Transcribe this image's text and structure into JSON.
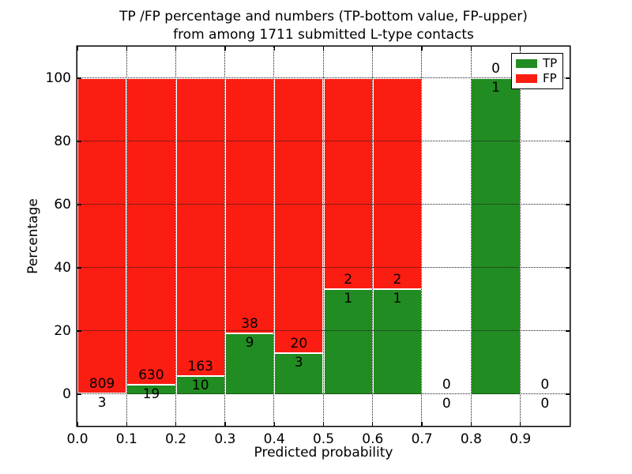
{
  "title": {
    "line1": "TP /FP percentage and numbers (TP-bottom value, FP-upper)",
    "line2": "from among 1711 submitted L-type contacts"
  },
  "chart_data": {
    "type": "bar",
    "stacked": true,
    "title": "TP /FP percentage and numbers (TP-bottom value, FP-upper)\nfrom among 1711 submitted L-type contacts",
    "xlabel": "Predicted probability",
    "ylabel": "Percentage",
    "xlim": [
      0.0,
      1.0
    ],
    "ylim": [
      -10,
      110
    ],
    "xticks": [
      0.0,
      0.1,
      0.2,
      0.3,
      0.4,
      0.5,
      0.6,
      0.7,
      0.8,
      0.9
    ],
    "xtick_labels": [
      "0.0",
      "0.1",
      "0.2",
      "0.3",
      "0.4",
      "0.5",
      "0.6",
      "0.7",
      "0.8",
      "0.9"
    ],
    "yticks": [
      0,
      20,
      40,
      60,
      80,
      100
    ],
    "ytick_labels": [
      "0",
      "20",
      "40",
      "60",
      "80",
      "100"
    ],
    "grid": "dotted",
    "annotation_offset_pct": 3,
    "bins": [
      {
        "x0": 0.0,
        "x1": 0.1,
        "tp": 3,
        "fp": 809
      },
      {
        "x0": 0.1,
        "x1": 0.2,
        "tp": 19,
        "fp": 630
      },
      {
        "x0": 0.2,
        "x1": 0.3,
        "tp": 10,
        "fp": 163
      },
      {
        "x0": 0.3,
        "x1": 0.4,
        "tp": 9,
        "fp": 38
      },
      {
        "x0": 0.4,
        "x1": 0.5,
        "tp": 3,
        "fp": 20
      },
      {
        "x0": 0.5,
        "x1": 0.6,
        "tp": 1,
        "fp": 2
      },
      {
        "x0": 0.6,
        "x1": 0.7,
        "tp": 1,
        "fp": 2
      },
      {
        "x0": 0.7,
        "x1": 0.8,
        "tp": 0,
        "fp": 0
      },
      {
        "x0": 0.8,
        "x1": 0.9,
        "tp": 1,
        "fp": 0
      },
      {
        "x0": 0.9,
        "x1": 1.0,
        "tp": 0,
        "fp": 0
      }
    ],
    "series": [
      {
        "name": "TP",
        "color": "#218c21"
      },
      {
        "name": "FP",
        "color": "#fc1d12"
      }
    ],
    "legend": {
      "position": "upper right",
      "entries": [
        {
          "label": "TP",
          "color": "#218c21"
        },
        {
          "label": "FP",
          "color": "#fc1d12"
        }
      ]
    }
  }
}
